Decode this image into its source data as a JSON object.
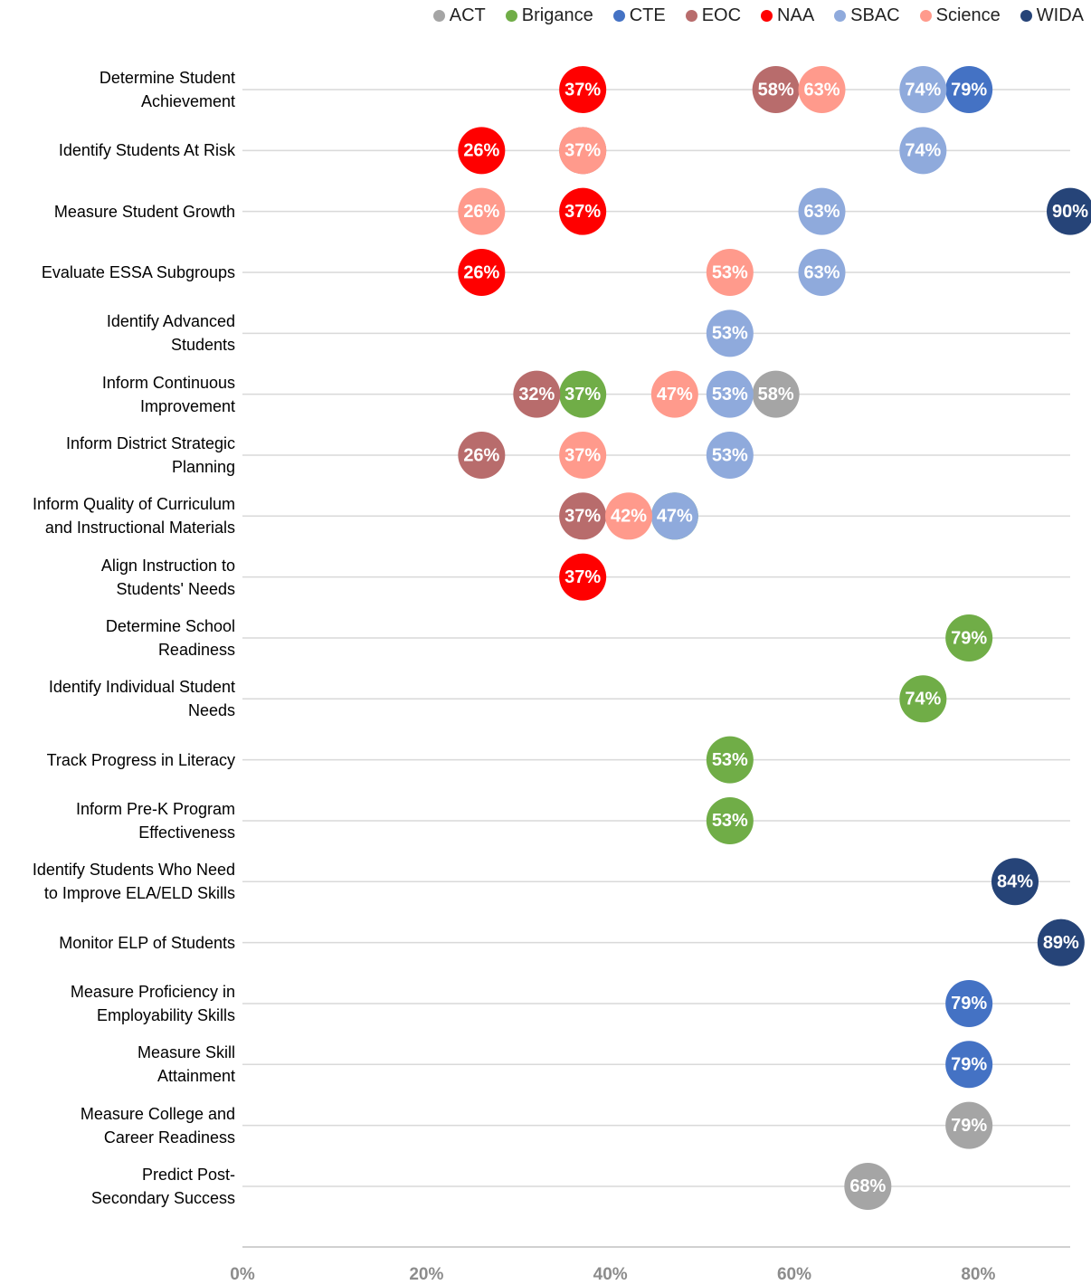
{
  "chart_data": {
    "type": "dot",
    "categories": [
      "Determine Student\nAchievement",
      "Identify Students At Risk",
      "Measure Student Growth",
      "Evaluate ESSA Subgroups",
      "Identify Advanced\nStudents",
      "Inform Continuous\nImprovement",
      "Inform District Strategic\nPlanning",
      "Inform Quality of Curriculum\nand Instructional Materials",
      "Align Instruction to\nStudents' Needs",
      "Determine School\nReadiness",
      "Identify Individual Student\nNeeds",
      "Track Progress in Literacy",
      "Inform Pre-K Program\nEffectiveness",
      "Identify Students Who Need\nto Improve ELA/ELD Skills",
      "Monitor ELP of Students",
      "Measure Proficiency in\nEmployability Skills",
      "Measure Skill\nAttainment",
      "Measure College and\nCareer Readiness",
      "Predict Post-\nSecondary Success"
    ],
    "series": [
      {
        "name": "ACT",
        "color": "#a5a5a5",
        "values": [
          null,
          null,
          null,
          null,
          null,
          58,
          null,
          null,
          null,
          null,
          null,
          null,
          null,
          null,
          null,
          null,
          null,
          79,
          68
        ],
        "value_labels": [
          null,
          null,
          null,
          null,
          null,
          "58%",
          null,
          null,
          null,
          null,
          null,
          null,
          null,
          null,
          null,
          null,
          null,
          "79%",
          "68%"
        ]
      },
      {
        "name": "Brigance",
        "color": "#70ad47",
        "values": [
          null,
          null,
          null,
          null,
          null,
          37,
          null,
          47,
          null,
          79,
          74,
          53,
          53,
          null,
          null,
          null,
          null,
          null,
          null
        ],
        "value_labels": [
          null,
          null,
          null,
          null,
          null,
          "37%",
          null,
          "47%",
          null,
          "79%",
          "74%",
          "53%",
          "53%",
          null,
          null,
          null,
          null,
          null,
          null
        ]
      },
      {
        "name": "CTE",
        "color": "#4472c4",
        "values": [
          79,
          null,
          null,
          null,
          null,
          null,
          null,
          null,
          null,
          null,
          null,
          null,
          null,
          null,
          null,
          79,
          79,
          null,
          null
        ],
        "value_labels": [
          "79%",
          null,
          null,
          null,
          null,
          null,
          null,
          null,
          null,
          null,
          null,
          null,
          null,
          null,
          null,
          "79%",
          "79%",
          null,
          null
        ]
      },
      {
        "name": "EOC",
        "color": "#b86c6c",
        "values": [
          58,
          37,
          null,
          null,
          null,
          32,
          26,
          37,
          null,
          null,
          null,
          null,
          null,
          null,
          null,
          null,
          null,
          null,
          null
        ],
        "value_labels": [
          "58%",
          "37%",
          null,
          null,
          null,
          "32%",
          "26%",
          "37%",
          null,
          null,
          null,
          null,
          null,
          null,
          null,
          null,
          null,
          null,
          null
        ]
      },
      {
        "name": "NAA",
        "color": "#ff0000",
        "values": [
          37,
          26,
          37,
          26,
          null,
          null,
          null,
          null,
          37,
          null,
          null,
          null,
          null,
          null,
          null,
          null,
          null,
          null,
          null
        ],
        "value_labels": [
          "37%",
          "26%",
          "37%",
          "26%",
          null,
          null,
          null,
          null,
          "37%",
          null,
          null,
          null,
          null,
          null,
          null,
          null,
          null,
          null,
          null
        ]
      },
      {
        "name": "SBAC",
        "color": "#8faadc",
        "values": [
          74,
          74,
          63,
          63,
          53,
          53,
          53,
          47,
          null,
          null,
          null,
          null,
          null,
          null,
          null,
          null,
          null,
          null,
          null
        ],
        "value_labels": [
          "74%",
          "74%",
          "63%",
          "63%",
          "53%",
          "53%",
          "53%",
          "47%",
          null,
          null,
          null,
          null,
          null,
          null,
          null,
          null,
          null,
          null,
          null
        ]
      },
      {
        "name": "Science",
        "color": "#ff9a8c",
        "values": [
          63,
          37,
          26,
          53,
          null,
          47,
          37,
          42,
          null,
          null,
          null,
          null,
          null,
          null,
          null,
          null,
          null,
          null,
          null
        ],
        "value_labels": [
          "63%",
          "37%",
          "26%",
          "53%",
          null,
          "47%",
          "37%",
          "42%",
          null,
          null,
          null,
          null,
          null,
          null,
          null,
          null,
          null,
          null,
          null
        ]
      },
      {
        "name": "WIDA",
        "color": "#264478",
        "values": [
          null,
          null,
          90,
          null,
          null,
          null,
          null,
          null,
          null,
          null,
          null,
          null,
          null,
          84,
          89,
          null,
          null,
          null,
          null
        ],
        "value_labels": [
          null,
          null,
          "90%",
          null,
          null,
          null,
          null,
          null,
          null,
          null,
          null,
          null,
          null,
          "84%",
          "89%",
          null,
          null,
          null,
          null
        ]
      }
    ],
    "xlim": [
      0,
      90
    ],
    "xticks": [
      {
        "value": 0,
        "label": "0%"
      },
      {
        "value": 20,
        "label": "20%"
      },
      {
        "value": 40,
        "label": "40%"
      },
      {
        "value": 60,
        "label": "60%"
      },
      {
        "value": 80,
        "label": "80%"
      }
    ],
    "legend": "top"
  }
}
